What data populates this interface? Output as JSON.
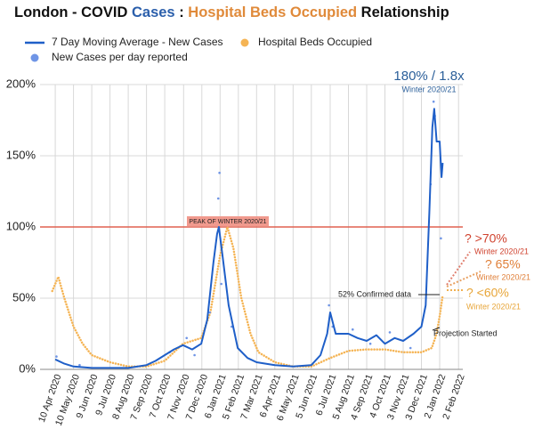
{
  "chart_data": {
    "type": "line",
    "title": [
      "London - COVID ",
      "Cases",
      " : ",
      "Hospital Beds Occupied",
      " Relationship"
    ],
    "title_colors": [
      "#111111",
      "#2b5fab",
      "#111111",
      "#e08a3a",
      "#111111"
    ],
    "xlim": [
      "2020-03-16",
      "2022-02-09"
    ],
    "xticks": [
      {
        "value": "2020-04-10",
        "label": "10 Apr 2020"
      },
      {
        "value": "2020-05-10",
        "label": "10 May 2020"
      },
      {
        "value": "2020-06-09",
        "label": "9 Jun 2020"
      },
      {
        "value": "2020-07-09",
        "label": "9 Jul 2020"
      },
      {
        "value": "2020-08-08",
        "label": "8 Aug 2020"
      },
      {
        "value": "2020-09-07",
        "label": "7 Sep 2020"
      },
      {
        "value": "2020-10-07",
        "label": "7 Oct 2020"
      },
      {
        "value": "2020-11-07",
        "label": "7 Nov 2020"
      },
      {
        "value": "2020-12-07",
        "label": "7 Dec 2020"
      },
      {
        "value": "2021-01-06",
        "label": "6 Jan 2021"
      },
      {
        "value": "2021-02-05",
        "label": "5 Feb 2021"
      },
      {
        "value": "2021-03-07",
        "label": "7 Mar 2021"
      },
      {
        "value": "2021-04-06",
        "label": "6 Apr 2021"
      },
      {
        "value": "2021-05-06",
        "label": "6 May 2021"
      },
      {
        "value": "2021-06-05",
        "label": "5 Jun 2021"
      },
      {
        "value": "2021-07-06",
        "label": "6 Jul 2021"
      },
      {
        "value": "2021-08-05",
        "label": "5 Aug 2021"
      },
      {
        "value": "2021-09-04",
        "label": "4 Sep 2021"
      },
      {
        "value": "2021-10-04",
        "label": "4 Oct 2021"
      },
      {
        "value": "2021-11-03",
        "label": "3 Nov 2021"
      },
      {
        "value": "2021-12-03",
        "label": "3 Dec 2021"
      },
      {
        "value": "2022-01-02",
        "label": "2 Jan 2022"
      },
      {
        "value": "2022-02-02",
        "label": "2 Feb 2022"
      }
    ],
    "ylim": [
      0,
      200
    ],
    "yticks": [
      {
        "value": 0,
        "label": "0%"
      },
      {
        "value": 50,
        "label": "50%"
      },
      {
        "value": 100,
        "label": "100%"
      },
      {
        "value": 150,
        "label": "150%"
      },
      {
        "value": 200,
        "label": "200%"
      }
    ],
    "grid": true,
    "reference_line": {
      "value": 100,
      "color": "#e06050"
    },
    "series": [
      {
        "name": "7 Day Moving Average - New Cases",
        "color": "#1f5fc8",
        "mark": "line",
        "x": [
          "2020-04-10",
          "2020-04-25",
          "2020-05-10",
          "2020-06-09",
          "2020-07-09",
          "2020-08-08",
          "2020-09-07",
          "2020-09-22",
          "2020-10-07",
          "2020-10-22",
          "2020-11-06",
          "2020-11-21",
          "2020-12-06",
          "2020-12-16",
          "2020-12-26",
          "2021-01-01",
          "2021-01-04",
          "2021-01-10",
          "2021-01-20",
          "2021-02-04",
          "2021-02-20",
          "2021-03-07",
          "2021-04-06",
          "2021-05-06",
          "2021-06-05",
          "2021-06-20",
          "2021-07-01",
          "2021-07-06",
          "2021-07-15",
          "2021-08-05",
          "2021-08-20",
          "2021-09-04",
          "2021-09-20",
          "2021-10-04",
          "2021-10-20",
          "2021-11-03",
          "2021-11-20",
          "2021-12-03",
          "2021-12-10",
          "2021-12-16",
          "2021-12-21",
          "2021-12-24",
          "2021-12-28",
          "2022-01-02",
          "2022-01-05",
          "2022-01-07"
        ],
        "values": [
          7,
          4,
          2,
          1,
          1,
          1,
          3,
          6,
          10,
          14,
          17,
          14,
          18,
          35,
          75,
          95,
          100,
          80,
          45,
          15,
          8,
          5,
          3,
          2,
          3,
          10,
          25,
          40,
          25,
          25,
          22,
          20,
          24,
          18,
          22,
          20,
          25,
          30,
          45,
          110,
          170,
          183,
          160,
          160,
          135,
          145
        ]
      },
      {
        "name": "Hospital Beds Occupied",
        "color": "#f5b454",
        "mark": "dots",
        "x": [
          "2020-04-05",
          "2020-04-15",
          "2020-04-25",
          "2020-05-10",
          "2020-05-25",
          "2020-06-09",
          "2020-07-09",
          "2020-08-08",
          "2020-09-07",
          "2020-10-07",
          "2020-10-22",
          "2020-11-06",
          "2020-11-21",
          "2020-12-06",
          "2020-12-21",
          "2021-01-06",
          "2021-01-18",
          "2021-01-28",
          "2021-02-10",
          "2021-02-25",
          "2021-03-10",
          "2021-04-06",
          "2021-05-06",
          "2021-06-05",
          "2021-07-06",
          "2021-08-05",
          "2021-09-04",
          "2021-10-04",
          "2021-11-03",
          "2021-12-03",
          "2021-12-20",
          "2021-12-28",
          "2022-01-03",
          "2022-01-07"
        ],
        "values": [
          55,
          65,
          50,
          30,
          18,
          10,
          5,
          2,
          2,
          6,
          12,
          18,
          20,
          22,
          40,
          80,
          100,
          85,
          50,
          25,
          12,
          5,
          2,
          2,
          8,
          13,
          14,
          14,
          12,
          12,
          15,
          25,
          40,
          52
        ]
      },
      {
        "name": "New Cases per day reported",
        "color": "#6f95e6",
        "mark": "points",
        "x": [
          "2020-04-12",
          "2020-05-20",
          "2020-10-15",
          "2020-11-12",
          "2020-11-25",
          "2020-12-20",
          "2021-01-03",
          "2021-01-05",
          "2021-01-08",
          "2021-01-25",
          "2021-07-04",
          "2021-07-10",
          "2021-08-12",
          "2021-09-10",
          "2021-10-12",
          "2021-11-15",
          "2021-12-18",
          "2021-12-23",
          "2021-12-25",
          "2022-01-04"
        ],
        "values": [
          9,
          3,
          12,
          22,
          10,
          40,
          120,
          138,
          60,
          30,
          45,
          30,
          28,
          18,
          26,
          15,
          130,
          188,
          178,
          92
        ]
      }
    ],
    "annotations": {
      "peak_label": "PEAK OF WINTER 2020/21",
      "peak_now": "180% / 1.8x",
      "peak_now_sub": "Winter 2020/21",
      "confirmed": "52% Confirmed data",
      "projection": "Projection Started",
      "proj_high": "? >70%",
      "proj_high_sub": "Winter 2020/21",
      "proj_mid": "? 65%",
      "proj_mid_sub": "Winter 2020/21",
      "proj_low": "? <60%",
      "proj_low_sub": "Winter 2020/21"
    }
  }
}
